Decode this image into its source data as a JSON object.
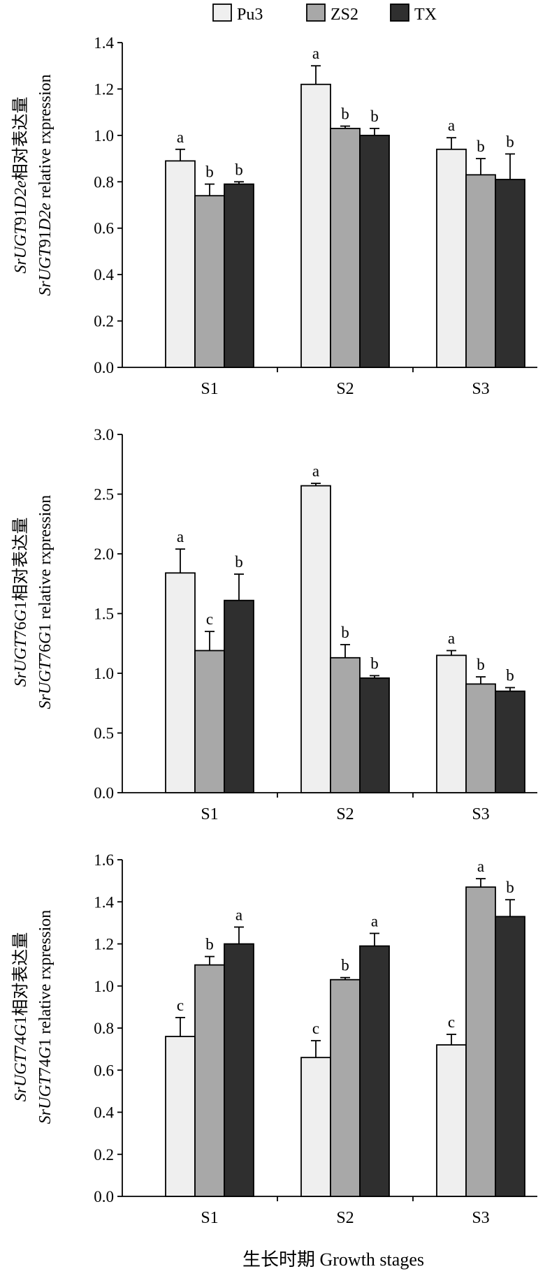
{
  "chart_data": [
    {
      "type": "bar",
      "categories": [
        "S1",
        "S2",
        "S3"
      ],
      "ylim": [
        0,
        1.4
      ],
      "yticks": [
        "0.0",
        "0.2",
        "0.4",
        "0.6",
        "0.8",
        "1.0",
        "1.2",
        "1.4"
      ],
      "ylabel": [
        [
          {
            "text": "SrUGT",
            "italic": true
          },
          {
            "text": "91",
            "italic": false
          },
          {
            "text": "D2e",
            "italic": true
          },
          {
            "text": "相对表达量",
            "italic": false
          }
        ],
        [
          {
            "text": "SrUGT",
            "italic": true
          },
          {
            "text": "91",
            "italic": false
          },
          {
            "text": "D2e",
            "italic": true
          },
          {
            "text": " relative rxpression",
            "italic": false
          }
        ]
      ],
      "series": [
        {
          "name": "Pu3",
          "color": "#efefef",
          "values": [
            0.89,
            1.22,
            0.94
          ],
          "errors": [
            0.05,
            0.08,
            0.05
          ],
          "letters": [
            "a",
            "a",
            "a"
          ]
        },
        {
          "name": "ZS2",
          "color": "#a8a8a8",
          "values": [
            0.74,
            1.03,
            0.83
          ],
          "errors": [
            0.05,
            0.01,
            0.07
          ],
          "letters": [
            "b",
            "b",
            "b"
          ]
        },
        {
          "name": "TX",
          "color": "#2f2f2f",
          "values": [
            0.79,
            1.0,
            0.81
          ],
          "errors": [
            0.01,
            0.03,
            0.11
          ],
          "letters": [
            "b",
            "b",
            "b"
          ]
        }
      ]
    },
    {
      "type": "bar",
      "categories": [
        "S1",
        "S2",
        "S3"
      ],
      "ylim": [
        0,
        3.0
      ],
      "yticks": [
        "0.0",
        "0.5",
        "1.0",
        "1.5",
        "2.0",
        "2.5",
        "3.0"
      ],
      "ylabel": [
        [
          {
            "text": "SrUGT",
            "italic": true
          },
          {
            "text": "76",
            "italic": false
          },
          {
            "text": "G",
            "italic": true
          },
          {
            "text": "1相对表达量",
            "italic": false
          }
        ],
        [
          {
            "text": "SrUGT",
            "italic": true
          },
          {
            "text": "76",
            "italic": false
          },
          {
            "text": "G",
            "italic": true
          },
          {
            "text": "1 relative rxpression",
            "italic": false
          }
        ]
      ],
      "series": [
        {
          "color": "#efefef",
          "values": [
            1.84,
            2.57,
            1.15
          ],
          "errors": [
            0.2,
            0.02,
            0.04
          ],
          "letters": [
            "a",
            "a",
            "a"
          ]
        },
        {
          "color": "#a8a8a8",
          "values": [
            1.19,
            1.13,
            0.91
          ],
          "errors": [
            0.16,
            0.11,
            0.06
          ],
          "letters": [
            "c",
            "b",
            "b"
          ]
        },
        {
          "color": "#2f2f2f",
          "values": [
            1.61,
            0.96,
            0.85
          ],
          "errors": [
            0.22,
            0.02,
            0.03
          ],
          "letters": [
            "b",
            "b",
            "b"
          ]
        }
      ]
    },
    {
      "type": "bar",
      "categories": [
        "S1",
        "S2",
        "S3"
      ],
      "ylim": [
        0,
        1.6
      ],
      "yticks": [
        "0.0",
        "0.2",
        "0.4",
        "0.6",
        "0.8",
        "1.0",
        "1.2",
        "1.4",
        "1.6"
      ],
      "ylabel": [
        [
          {
            "text": "SrUGT",
            "italic": true
          },
          {
            "text": "74",
            "italic": false
          },
          {
            "text": "G",
            "italic": true
          },
          {
            "text": "1相对表达量",
            "italic": false
          }
        ],
        [
          {
            "text": "SrUGT",
            "italic": true
          },
          {
            "text": "74",
            "italic": false
          },
          {
            "text": "G",
            "italic": true
          },
          {
            "text": "1 relative rxpression",
            "italic": false
          }
        ]
      ],
      "xlabel": "生长时期 Growth stages",
      "series": [
        {
          "color": "#efefef",
          "values": [
            0.76,
            0.66,
            0.72
          ],
          "errors": [
            0.09,
            0.08,
            0.05
          ],
          "letters": [
            "c",
            "c",
            "c"
          ]
        },
        {
          "color": "#a8a8a8",
          "values": [
            1.1,
            1.03,
            1.47
          ],
          "errors": [
            0.04,
            0.01,
            0.04
          ],
          "letters": [
            "b",
            "b",
            "a"
          ]
        },
        {
          "color": "#2f2f2f",
          "values": [
            1.2,
            1.19,
            1.33
          ],
          "errors": [
            0.08,
            0.06,
            0.08
          ],
          "letters": [
            "a",
            "a",
            "b"
          ]
        }
      ]
    }
  ]
}
